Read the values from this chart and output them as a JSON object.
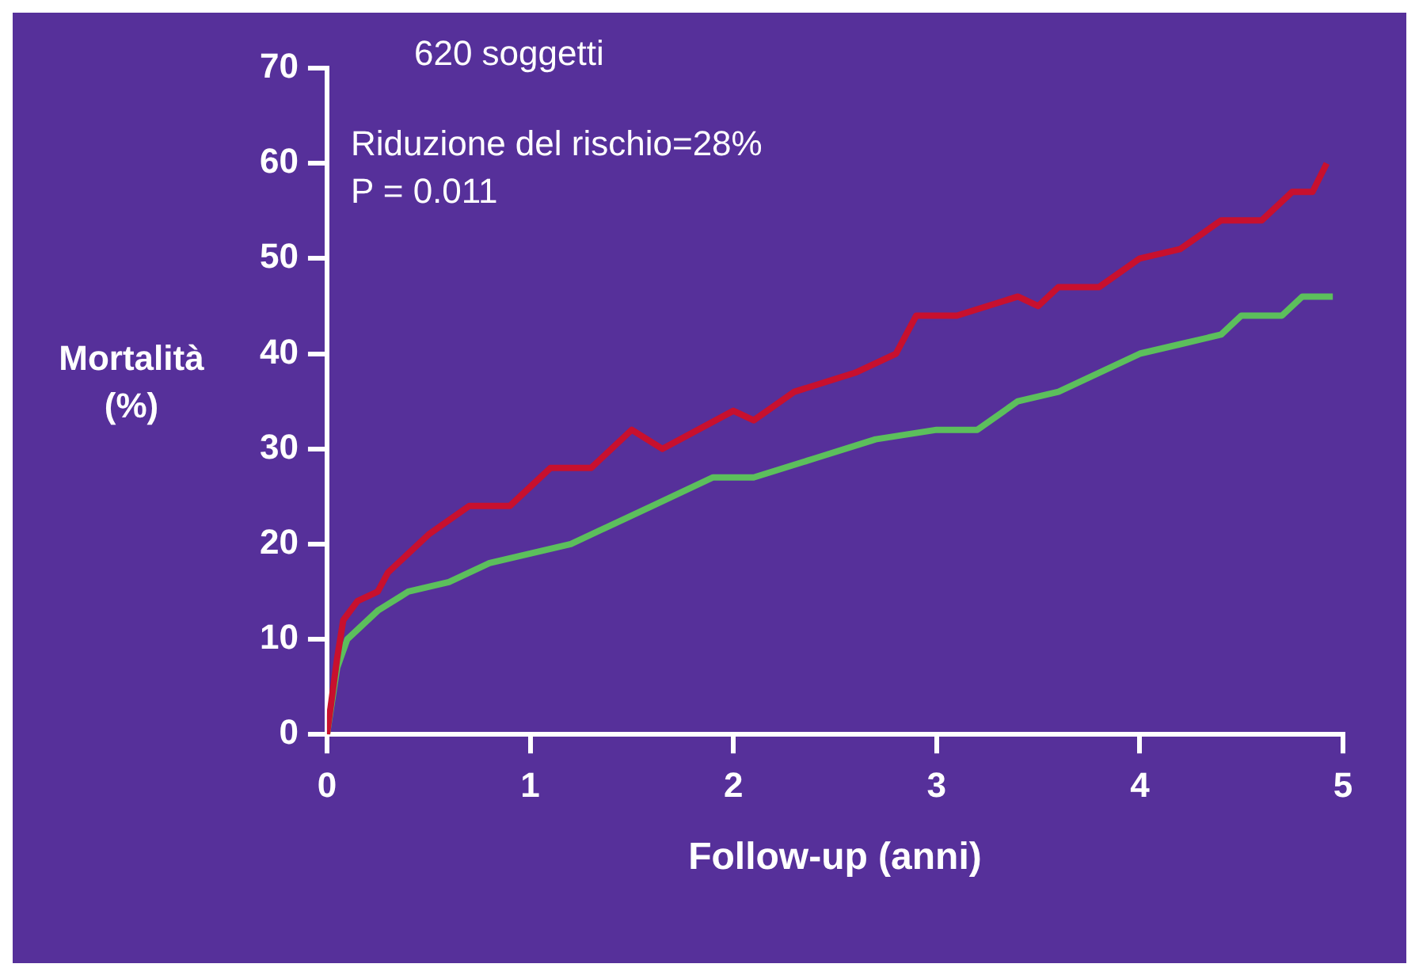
{
  "chart_data": {
    "type": "line",
    "title": "620 soggetti",
    "xlabel": "Follow-up (anni)",
    "ylabel": "Mortalità (%)",
    "annotations": [
      "Riduzione del rischio=28%",
      "P = 0.011"
    ],
    "xlim": [
      0,
      5
    ],
    "xticks": [
      0,
      1,
      2,
      3,
      4,
      5
    ],
    "ylim": [
      0,
      70
    ],
    "yticks": [
      0,
      10,
      20,
      30,
      40,
      50,
      60,
      70
    ],
    "grid": false,
    "legend": false,
    "marker": "none",
    "line_style": "solid",
    "series": [
      {
        "color": "#c8102e",
        "x": [
          0,
          0.05,
          0.08,
          0.15,
          0.25,
          0.3,
          0.5,
          0.7,
          0.9,
          1.1,
          1.3,
          1.5,
          1.65,
          2,
          2.1,
          2.3,
          2.6,
          2.8,
          2.9,
          3.1,
          3.4,
          3.5,
          3.6,
          3.8,
          4,
          4.2,
          4.4,
          4.6,
          4.75,
          4.85,
          4.92
        ],
        "values": [
          0,
          8,
          12,
          14,
          15,
          17,
          21,
          24,
          24,
          28,
          28,
          32,
          30,
          34,
          33,
          36,
          38,
          40,
          44,
          44,
          46,
          45,
          47,
          47,
          50,
          51,
          54,
          54,
          57,
          57,
          60
        ]
      },
      {
        "color": "#5cbf5c",
        "x": [
          0,
          0.05,
          0.1,
          0.25,
          0.4,
          0.6,
          0.8,
          1,
          1.2,
          1.4,
          1.6,
          1.9,
          2.1,
          2.4,
          2.7,
          3,
          3.2,
          3.4,
          3.6,
          3.8,
          4,
          4.2,
          4.4,
          4.5,
          4.7,
          4.8,
          4.95
        ],
        "values": [
          0,
          7,
          10,
          13,
          15,
          16,
          18,
          19,
          20,
          22,
          24,
          27,
          27,
          29,
          31,
          32,
          32,
          35,
          36,
          38,
          40,
          41,
          42,
          44,
          44,
          46,
          46
        ]
      }
    ]
  }
}
